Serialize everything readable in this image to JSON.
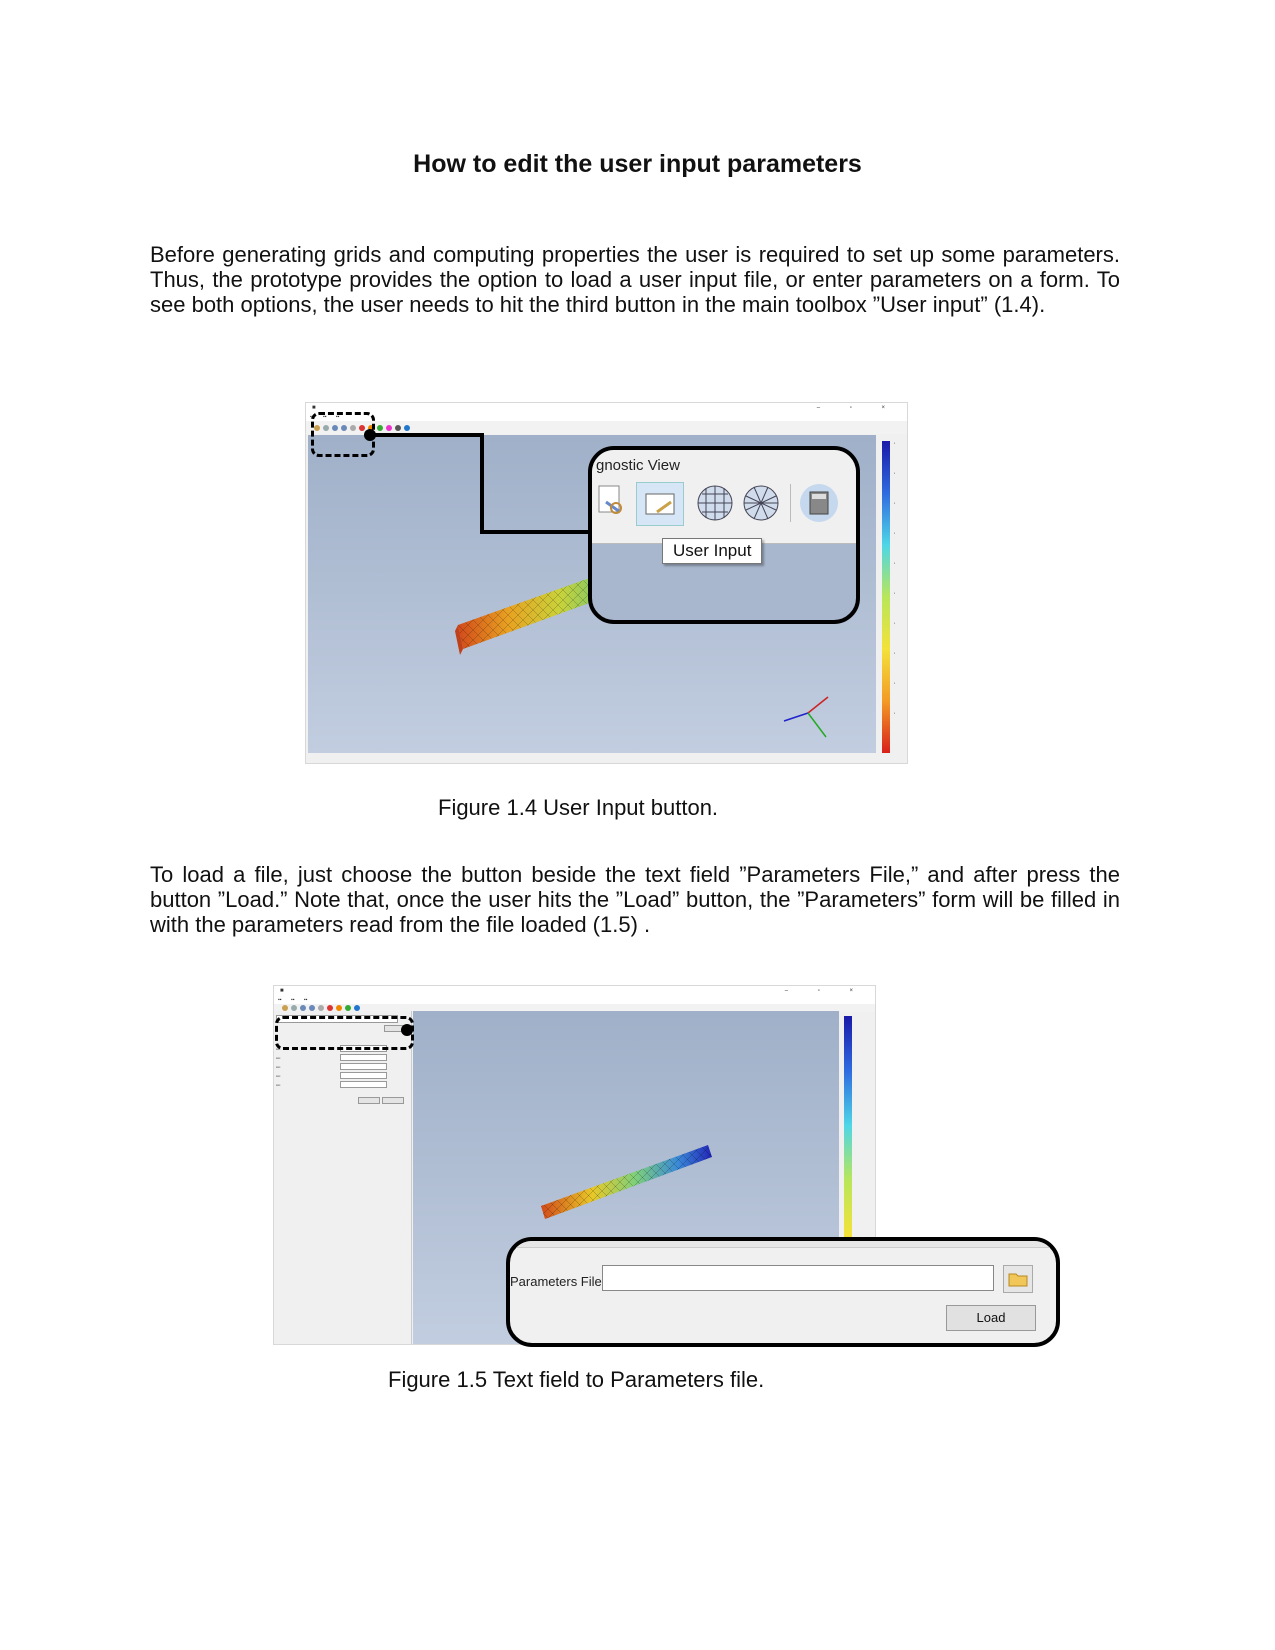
{
  "title": "How to edit the user input parameters",
  "paragraph1": "Before generating grids and computing properties the user is required to set up some parameters. Thus, the prototype provides the option to load a user input file, or enter parameters on a form. To see both options, the user needs to hit the third button in the main toolbox ”User input” (1.4).",
  "figure1": {
    "caption": "Figure 1.4 User Input button.",
    "callout_header": "gnostic View",
    "tooltip": "User Input"
  },
  "paragraph2": "To load a file, just choose the button beside the text field ”Parameters File,” and after press the button ”Load.” Note that, once the user hits the ”Load” button, the ”Parameters” form will be filled in with the parameters read from the file loaded (1.5) .",
  "figure2": {
    "caption": "Figure 1.5 Text field to Parameters file.",
    "field_label": "Parameters File",
    "load_button": "Load"
  },
  "colors": {
    "scalar_top": "#1a1aa8",
    "scalar_bottom": "#d8201b",
    "viewport": "#aab8cf"
  }
}
